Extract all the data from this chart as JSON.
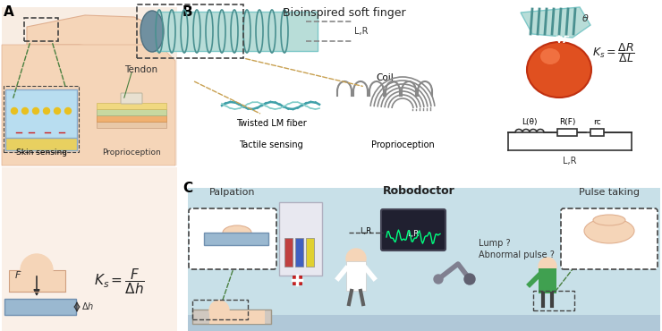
{
  "panel_A_label": "A",
  "panel_B_label": "B",
  "panel_C_label": "C",
  "panel_A_texts": {
    "tendon": "Tendon",
    "skin_sensing": "Skin sensing",
    "proprioception": "Proprioception"
  },
  "panel_B_texts": {
    "title": "Bioinspired soft finger",
    "LR": "L,R",
    "coil": "Coil",
    "twisted": "Twisted LM fiber",
    "tactile": "Tactile sensing",
    "proprio": "Proprioception",
    "circuit": "L,R",
    "L_theta": "L(θ)",
    "R_F": "R(F)",
    "r_C": "rᴄ"
  },
  "panel_C_texts": {
    "palpation": "Palpation",
    "robodoctor": "Robodoctor",
    "pulse_taking": "Pulse taking",
    "LR": "L,R",
    "lump": "Lump ?",
    "abnormal": "Abnormal pulse ?"
  },
  "bg_color": "#ffffff",
  "skin_color": "#f5d5b8",
  "teal_color": "#7ec8c8",
  "light_teal": "#b8ddd8",
  "dark_teal": "#4a9090",
  "orange_red": "#e05020",
  "green_arrow": "#4a8040",
  "yellow_tan": "#c8a050",
  "dashed_color": "#444444",
  "panel_C_bg": "#c8e0e8"
}
